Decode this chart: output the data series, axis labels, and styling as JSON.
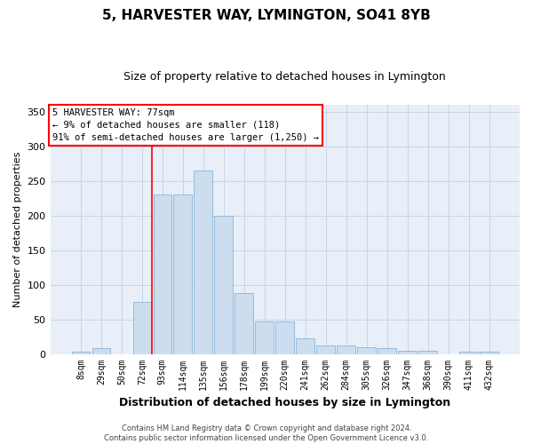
{
  "title": "5, HARVESTER WAY, LYMINGTON, SO41 8YB",
  "subtitle": "Size of property relative to detached houses in Lymington",
  "xlabel": "Distribution of detached houses by size in Lymington",
  "ylabel": "Number of detached properties",
  "categories": [
    "8sqm",
    "29sqm",
    "50sqm",
    "72sqm",
    "93sqm",
    "114sqm",
    "135sqm",
    "156sqm",
    "178sqm",
    "199sqm",
    "220sqm",
    "241sqm",
    "262sqm",
    "284sqm",
    "305sqm",
    "326sqm",
    "347sqm",
    "368sqm",
    "390sqm",
    "411sqm",
    "432sqm"
  ],
  "values": [
    3,
    8,
    0,
    75,
    230,
    230,
    265,
    200,
    88,
    47,
    47,
    22,
    12,
    12,
    10,
    8,
    5,
    5,
    0,
    3,
    3
  ],
  "bar_color": "#ccddf0",
  "bar_edge_color": "#8ab4d8",
  "red_line_x": 3.5,
  "annotation_text": "5 HARVESTER WAY: 77sqm\n← 9% of detached houses are smaller (118)\n91% of semi-detached houses are larger (1,250) →",
  "annotation_box_color": "white",
  "annotation_box_edge_color": "red",
  "vline_color": "red",
  "ylim": [
    0,
    360
  ],
  "yticks": [
    0,
    50,
    100,
    150,
    200,
    250,
    300,
    350
  ],
  "grid_color": "#c8d4e8",
  "background_color": "#e8eff8",
  "footer_text": "Contains HM Land Registry data © Crown copyright and database right 2024.\nContains public sector information licensed under the Open Government Licence v3.0.",
  "title_fontsize": 11,
  "subtitle_fontsize": 9,
  "xlabel_fontsize": 9,
  "ylabel_fontsize": 8,
  "annot_fontsize": 7.5
}
